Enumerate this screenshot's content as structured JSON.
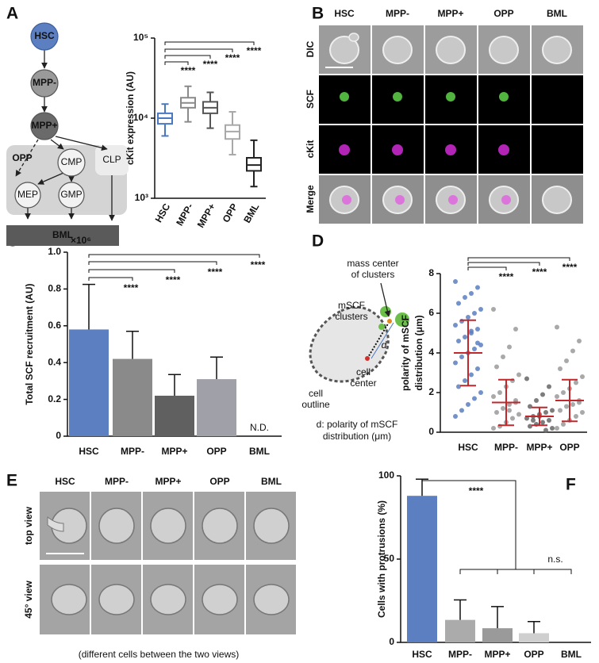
{
  "panel_labels": [
    "A",
    "B",
    "C",
    "D",
    "E",
    "F"
  ],
  "diagram_a": {
    "nodes": [
      "HSC",
      "MPP-",
      "MPP+",
      "OPP",
      "CMP",
      "CLP",
      "MEP",
      "GMP",
      "BML"
    ]
  },
  "micrographs_b": {
    "columns": [
      "HSC",
      "MPP-",
      "MPP+",
      "OPP",
      "BML"
    ],
    "rows": [
      "DIC",
      "SCF",
      "cKit",
      "Merge"
    ]
  },
  "diagram_d": {
    "mass_center": [
      "mass center",
      "of clusters"
    ],
    "clusters": [
      "mSCF",
      "clusters"
    ],
    "d": "d",
    "cell_center": [
      "cell",
      "center"
    ],
    "cell_outline": [
      "cell",
      "outline"
    ],
    "caption": [
      "d: polarity of mSCF",
      "distribution (μm)"
    ]
  },
  "micrographs_e": {
    "columns": [
      "HSC",
      "MPP-",
      "MPP+",
      "OPP",
      "BML"
    ],
    "rows": [
      "top view",
      "45° view"
    ],
    "caption": "(different cells between the two views)"
  },
  "chart_data": [
    {
      "type": "box",
      "ylabel": "cKit expression (AU)",
      "log_scale": true,
      "categories": [
        "HSC",
        "MPP-",
        "MPP+",
        "OPP",
        "BML"
      ],
      "colors": [
        "#4a78c0",
        "#8a8a8a",
        "#555555",
        "#a8a8a8",
        "#222222"
      ],
      "boxes": [
        {
          "min": 6000,
          "q1": 8500,
          "median": 10000,
          "q3": 11500,
          "max": 15000
        },
        {
          "min": 9000,
          "q1": 13500,
          "median": 15500,
          "q3": 18000,
          "max": 25000
        },
        {
          "min": 7500,
          "q1": 11500,
          "median": 13500,
          "q3": 16000,
          "max": 21000
        },
        {
          "min": 3500,
          "q1": 5500,
          "median": 6800,
          "q3": 8200,
          "max": 12000
        },
        {
          "min": 1400,
          "q1": 2200,
          "median": 2600,
          "q3": 3200,
          "max": 5300
        }
      ],
      "ylim": [
        1000,
        100000
      ],
      "yticks": [
        {
          "value": 1000,
          "label": "10³"
        },
        {
          "value": 10000,
          "label": "10⁴"
        },
        {
          "value": 100000,
          "label": "10⁵"
        }
      ],
      "annotations": [
        "****",
        "****",
        "****",
        "****"
      ]
    },
    {
      "type": "bar",
      "ylabel": "Total SCF recruitment (AU)",
      "y_multiplier": "×10⁶",
      "categories": [
        "HSC",
        "MPP-",
        "MPP+",
        "OPP",
        "BML"
      ],
      "colors": [
        "#5b7fc0",
        "#8a8a8a",
        "#606060",
        "#a0a0a8",
        "#cccccc"
      ],
      "values": [
        0.58,
        0.42,
        0.22,
        0.31,
        null
      ],
      "errors": [
        0.245,
        0.15,
        0.115,
        0.12,
        null
      ],
      "ylim": [
        0,
        1.0
      ],
      "yticks": [
        0,
        0.2,
        0.4,
        0.6,
        0.8,
        {
          "value": 1.0,
          "label": "1.0"
        }
      ],
      "annotations": [
        "****",
        "****",
        "****",
        "****",
        "N.D."
      ]
    },
    {
      "type": "scatter",
      "ylabel": [
        "polarity of mSCF",
        "distribution (μm)"
      ],
      "categories": [
        "HSC",
        "MPP-",
        "MPP+",
        "OPP"
      ],
      "colors": [
        "#5b7fc0",
        "#9a9a9a",
        "#666666",
        "#9a9a9a"
      ],
      "mean_color": "#c0282c",
      "values": [
        [
          7.6,
          7.3,
          7.0,
          6.8,
          6.5,
          6.2,
          6.0,
          5.8,
          5.6,
          5.4,
          5.2,
          5.0,
          4.8,
          4.6,
          4.4,
          4.2,
          4.0,
          3.8,
          3.5,
          3.2,
          2.9,
          2.6,
          2.3,
          2.0,
          1.7,
          1.4,
          1.1,
          0.8,
          4.5,
          5.1
        ],
        [
          6.2,
          5.2,
          4.3,
          3.8,
          3.3,
          2.9,
          2.6,
          2.3,
          2.0,
          1.8,
          1.6,
          1.4,
          1.2,
          1.0,
          0.9,
          0.7,
          0.5,
          0.3,
          0.2,
          1.5,
          1.1
        ],
        [
          2.7,
          2.3,
          1.9,
          1.6,
          1.3,
          1.1,
          1.0,
          0.9,
          0.8,
          0.7,
          0.6,
          0.5,
          0.4,
          0.3,
          0.2,
          0.1,
          0.8,
          0.6
        ],
        [
          5.3,
          4.6,
          4.1,
          3.6,
          3.2,
          2.8,
          2.5,
          2.2,
          2.0,
          1.8,
          1.6,
          1.4,
          1.3,
          1.1,
          1.0,
          0.8,
          0.6,
          0.4,
          0.2,
          1.5
        ]
      ],
      "means": [
        4.0,
        1.5,
        0.8,
        1.6
      ],
      "sds": [
        1.65,
        1.15,
        0.45,
        1.05
      ],
      "ylim": [
        0,
        8
      ],
      "yticks": [
        0,
        2,
        4,
        6,
        8
      ],
      "annotations": [
        "****",
        "****",
        "****"
      ]
    },
    {
      "type": "bar",
      "ylabel": "Cells with protrusions (%)",
      "categories": [
        "HSC",
        "MPP-",
        "MPP+",
        "OPP",
        "BML"
      ],
      "colors": [
        "#5b7fc0",
        "#ababab",
        "#9a9a9a",
        "#cfcfcf",
        "#cccccc"
      ],
      "values": [
        88,
        13.5,
        8.5,
        5.5,
        0
      ],
      "errors": [
        10,
        12,
        13,
        7,
        0
      ],
      "ylim": [
        0,
        100
      ],
      "yticks": [
        0,
        50,
        100
      ],
      "annotations": [
        "****",
        "n.s."
      ]
    }
  ]
}
